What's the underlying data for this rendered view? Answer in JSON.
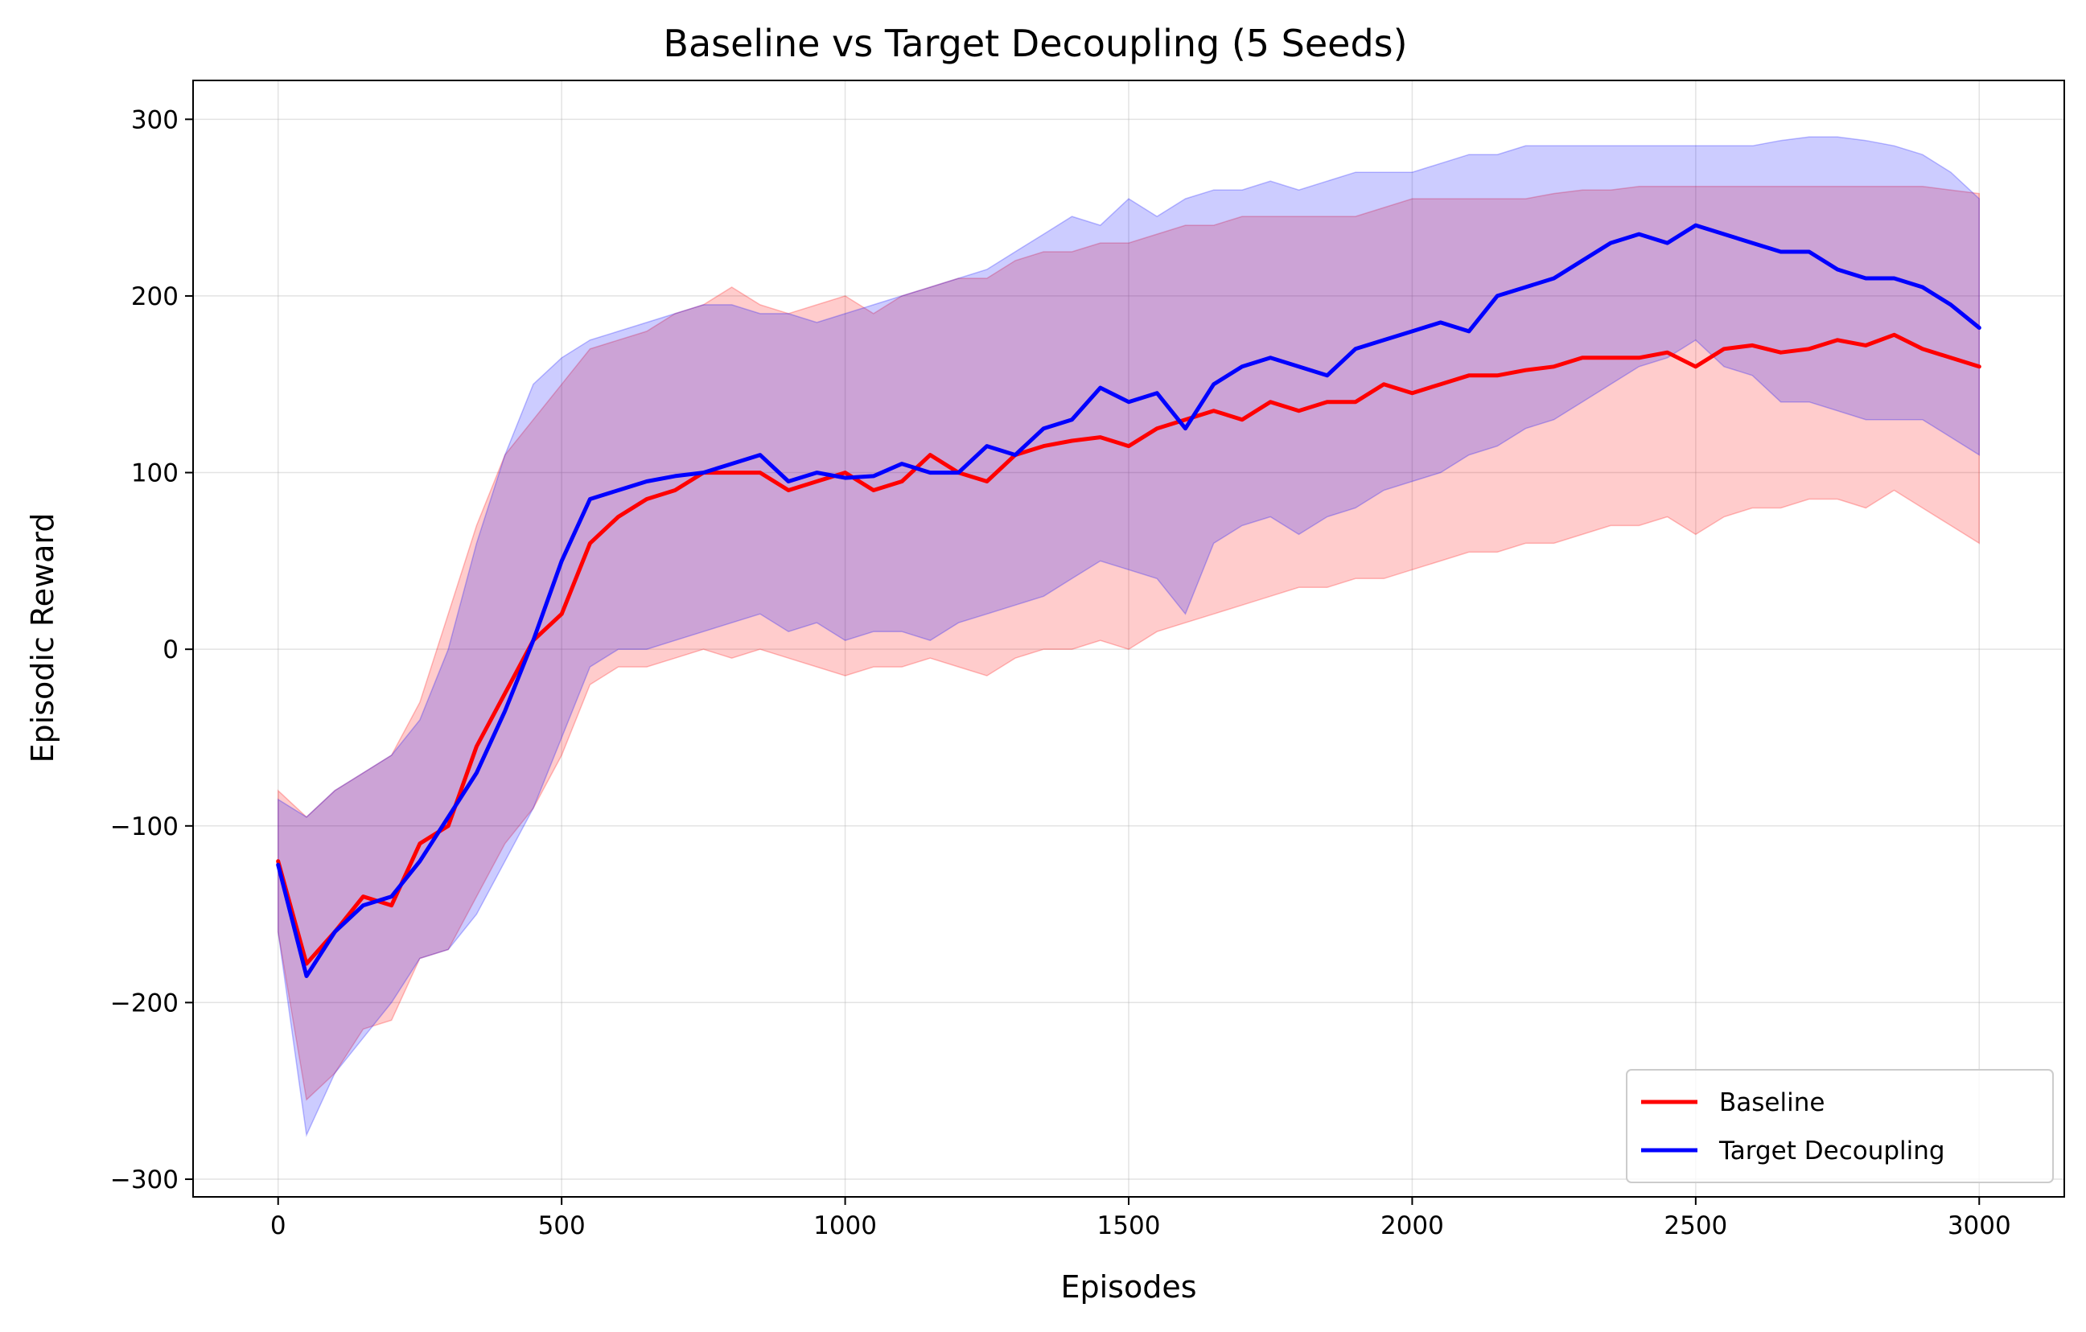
{
  "chart_data": {
    "type": "line",
    "title": "Baseline vs Target Decoupling (5 Seeds)",
    "xlabel": "Episodes",
    "ylabel": "Episodic Reward",
    "xlim": [
      -150,
      3150
    ],
    "ylim": [
      -310,
      322
    ],
    "xticks": [
      0,
      500,
      1000,
      1500,
      2000,
      2500,
      3000
    ],
    "xtick_labels": [
      "0",
      "500",
      "1000",
      "1500",
      "2000",
      "2500",
      "3000"
    ],
    "yticks": [
      -300,
      -200,
      -100,
      0,
      100,
      200,
      300
    ],
    "ytick_labels": [
      "−300",
      "−200",
      "−100",
      "0",
      "100",
      "200",
      "300"
    ],
    "grid": true,
    "legend_position": "lower-right",
    "x": [
      0,
      50,
      100,
      150,
      200,
      250,
      300,
      350,
      400,
      450,
      500,
      550,
      600,
      650,
      700,
      750,
      800,
      850,
      900,
      950,
      1000,
      1050,
      1100,
      1150,
      1200,
      1250,
      1300,
      1350,
      1400,
      1450,
      1500,
      1550,
      1600,
      1650,
      1700,
      1750,
      1800,
      1850,
      1900,
      1950,
      2000,
      2050,
      2100,
      2150,
      2200,
      2250,
      2300,
      2350,
      2400,
      2450,
      2500,
      2550,
      2600,
      2650,
      2700,
      2750,
      2800,
      2850,
      2900,
      2950,
      3000
    ],
    "series": [
      {
        "name": "Baseline",
        "color": "#ff0000",
        "band_color": "#ff0000",
        "mean": [
          -120,
          -178,
          -160,
          -140,
          -145,
          -110,
          -100,
          -55,
          -25,
          5,
          20,
          60,
          75,
          85,
          90,
          100,
          100,
          100,
          90,
          95,
          100,
          90,
          95,
          110,
          100,
          95,
          110,
          115,
          118,
          120,
          115,
          125,
          130,
          135,
          130,
          140,
          135,
          140,
          140,
          150,
          145,
          150,
          155,
          155,
          158,
          160,
          165,
          165,
          165,
          168,
          160,
          170,
          172,
          168,
          170,
          175,
          172,
          178,
          170,
          165,
          160
        ],
        "upper": [
          -80,
          -95,
          -80,
          -70,
          -60,
          -30,
          20,
          70,
          110,
          130,
          150,
          170,
          175,
          180,
          190,
          195,
          205,
          195,
          190,
          195,
          200,
          190,
          200,
          205,
          210,
          210,
          220,
          225,
          225,
          230,
          230,
          235,
          240,
          240,
          245,
          245,
          245,
          245,
          245,
          250,
          255,
          255,
          255,
          255,
          255,
          258,
          260,
          260,
          262,
          262,
          262,
          262,
          262,
          262,
          262,
          262,
          262,
          262,
          262,
          260,
          258
        ],
        "lower": [
          -160,
          -255,
          -240,
          -215,
          -210,
          -175,
          -170,
          -140,
          -110,
          -90,
          -60,
          -20,
          -10,
          -10,
          -5,
          0,
          -5,
          0,
          -5,
          -10,
          -15,
          -10,
          -10,
          -5,
          -10,
          -15,
          -5,
          0,
          0,
          5,
          0,
          10,
          15,
          20,
          25,
          30,
          35,
          35,
          40,
          40,
          45,
          50,
          55,
          55,
          60,
          60,
          65,
          70,
          70,
          75,
          65,
          75,
          80,
          80,
          85,
          85,
          80,
          90,
          80,
          70,
          60
        ]
      },
      {
        "name": "Target Decoupling",
        "color": "#0000ff",
        "band_color": "#0000ff",
        "mean": [
          -122,
          -185,
          -160,
          -145,
          -140,
          -120,
          -95,
          -70,
          -35,
          5,
          50,
          85,
          90,
          95,
          98,
          100,
          105,
          110,
          95,
          100,
          97,
          98,
          105,
          100,
          100,
          115,
          110,
          125,
          130,
          148,
          140,
          145,
          125,
          150,
          160,
          165,
          160,
          155,
          170,
          175,
          180,
          185,
          180,
          200,
          205,
          210,
          220,
          230,
          235,
          230,
          240,
          235,
          230,
          225,
          225,
          215,
          210,
          210,
          205,
          195,
          182
        ],
        "upper": [
          -85,
          -95,
          -80,
          -70,
          -60,
          -40,
          0,
          60,
          110,
          150,
          165,
          175,
          180,
          185,
          190,
          195,
          195,
          190,
          190,
          185,
          190,
          195,
          200,
          205,
          210,
          215,
          225,
          235,
          245,
          240,
          255,
          245,
          255,
          260,
          260,
          265,
          260,
          265,
          270,
          270,
          270,
          275,
          280,
          280,
          285,
          285,
          285,
          285,
          285,
          285,
          285,
          285,
          285,
          288,
          290,
          290,
          288,
          285,
          280,
          270,
          255
        ],
        "lower": [
          -160,
          -275,
          -240,
          -220,
          -200,
          -175,
          -170,
          -150,
          -120,
          -90,
          -50,
          -10,
          0,
          0,
          5,
          10,
          15,
          20,
          10,
          15,
          5,
          10,
          10,
          5,
          15,
          20,
          25,
          30,
          40,
          50,
          45,
          40,
          20,
          60,
          70,
          75,
          65,
          75,
          80,
          90,
          95,
          100,
          110,
          115,
          125,
          130,
          140,
          150,
          160,
          165,
          175,
          160,
          155,
          140,
          140,
          135,
          130,
          130,
          130,
          120,
          110
        ]
      }
    ]
  }
}
